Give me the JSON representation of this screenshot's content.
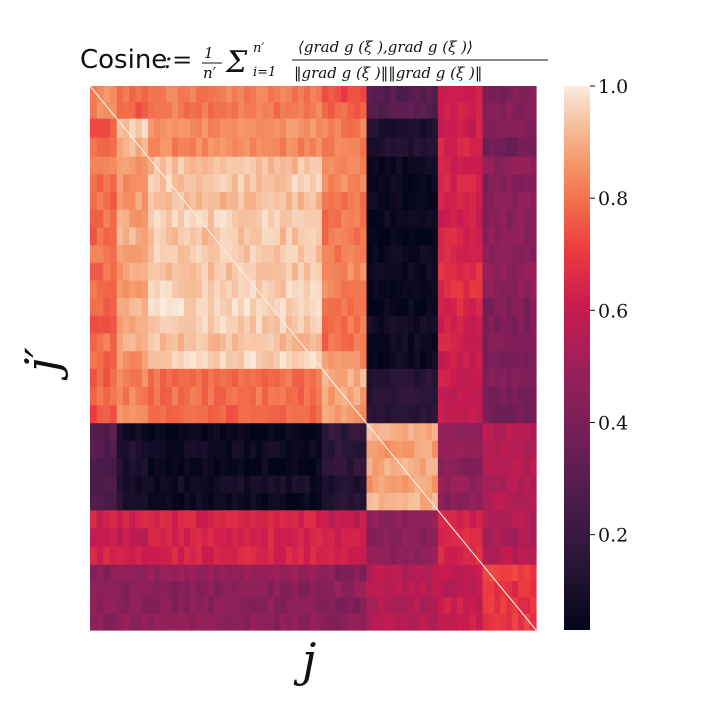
{
  "chart_data": {
    "type": "heatmap",
    "title_prefix": "Cosine",
    "title_formula": ":= (1/n′) Σ_{i=1}^{n′} ⟨grad_M g_j(ξ_i), grad_M g_ij′(ξ_i)⟩ / (‖grad_M g_i(ξ_i)‖‖grad_M g_j(ξ_i)‖)",
    "xlabel": "j",
    "ylabel": "j′",
    "colorbar": {
      "range": [
        0.03,
        1.0
      ],
      "ticks": [
        0.2,
        0.4,
        0.6,
        0.8,
        1.0
      ],
      "tick_labels": [
        "0.2",
        "0.4",
        "0.6",
        "0.8",
        "1.0"
      ],
      "colormap": "rocket"
    },
    "block_boundaries": [
      0,
      0.06,
      0.13,
      0.52,
      0.62,
      0.78,
      0.88,
      1.0
    ],
    "block_matrix": [
      [
        0.82,
        0.78,
        0.8,
        0.75,
        0.28,
        0.62,
        0.42
      ],
      [
        0.78,
        0.92,
        0.86,
        0.8,
        0.1,
        0.62,
        0.4
      ],
      [
        0.78,
        0.88,
        0.95,
        0.82,
        0.06,
        0.64,
        0.44
      ],
      [
        0.76,
        0.8,
        0.8,
        0.88,
        0.15,
        0.6,
        0.4
      ],
      [
        0.28,
        0.1,
        0.06,
        0.15,
        0.9,
        0.45,
        0.55
      ],
      [
        0.62,
        0.62,
        0.64,
        0.6,
        0.45,
        0.62,
        0.55
      ],
      [
        0.45,
        0.45,
        0.46,
        0.44,
        0.55,
        0.58,
        0.68
      ]
    ]
  }
}
